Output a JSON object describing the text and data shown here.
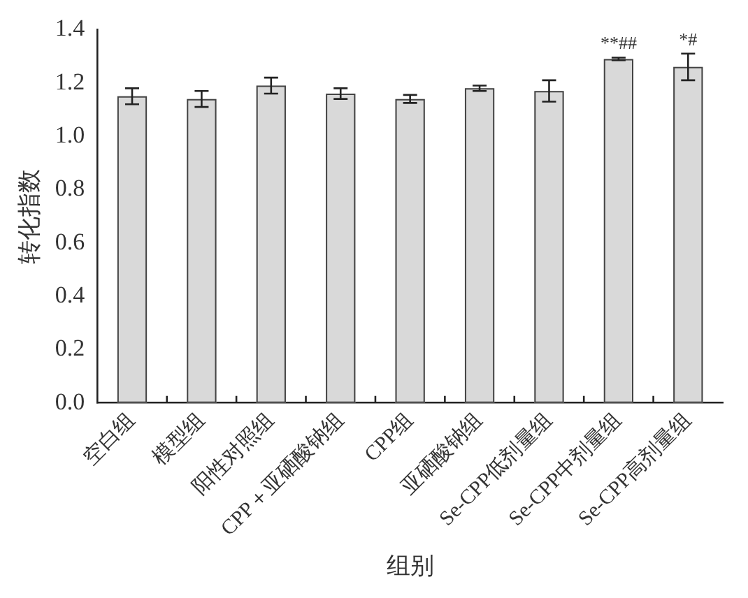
{
  "chart_data": {
    "type": "bar",
    "xlabel": "组别",
    "ylabel": "转化指数",
    "categories": [
      "空白组",
      "模型组",
      "阳性对照组",
      "CPP＋亚硒酸钠组",
      "CPP组",
      "亚硒酸钠组",
      "Se-CPP低剂量组",
      "Se-CPP中剂量组",
      "Se-CPP高剂量组"
    ],
    "values": [
      1.15,
      1.14,
      1.19,
      1.16,
      1.14,
      1.18,
      1.17,
      1.29,
      1.26
    ],
    "errors": [
      0.03,
      0.03,
      0.03,
      0.02,
      0.015,
      0.01,
      0.04,
      0.005,
      0.05
    ],
    "color": "#d9d9d9",
    "ylim": [
      0,
      1.4
    ],
    "yticks": [
      {
        "value": 0,
        "label": "0.0"
      },
      0.2,
      0.4,
      0.6,
      0.8,
      {
        "value": 1,
        "label": "1.0"
      },
      1.2,
      1.4
    ],
    "grid": false,
    "annotations": [
      {
        "text": "**##",
        "x": "Se-CPP中剂量组",
        "y": 1.295
      },
      {
        "text": "*#",
        "x": "Se-CPP高剂量组",
        "y": 1.31
      }
    ]
  }
}
